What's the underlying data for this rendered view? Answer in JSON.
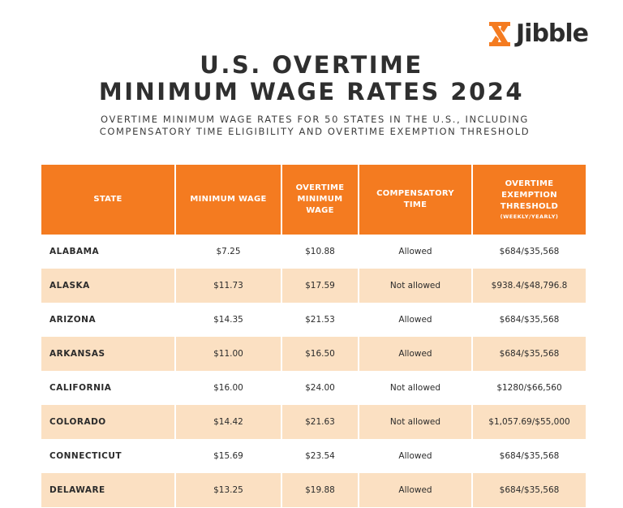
{
  "brand": {
    "logo_text": "Jibble",
    "accent_color": "#f47b20"
  },
  "title": {
    "line1": "U.S. OVERTIME",
    "line2": "MINIMUM WAGE RATES 2024"
  },
  "subtitle": {
    "line1": "OVERTIME MINIMUM WAGE RATES FOR 50 STATES IN THE U.S., INCLUDING",
    "line2": "COMPENSATORY TIME ELIGIBILITY AND OVERTIME EXEMPTION THRESHOLD"
  },
  "table": {
    "header_color": "#f47b20",
    "stripe_color": "#fbe0c2",
    "headers": {
      "state": "STATE",
      "min_wage": "MINIMUM WAGE",
      "ot_line1": "OVERTIME",
      "ot_line2": "MINIMUM",
      "ot_line3": "WAGE",
      "comp_line1": "COMPENSATORY",
      "comp_line2": "TIME",
      "thr_line1": "OVERTIME",
      "thr_line2": "EXEMPTION",
      "thr_line3": "THRESHOLD",
      "thr_sub": "(WEEKLY/YEARLY)"
    },
    "rows": [
      {
        "state": "ALABAMA",
        "min_wage": "$7.25",
        "ot_wage": "$10.88",
        "comp": "Allowed",
        "threshold": "$684/$35,568"
      },
      {
        "state": "ALASKA",
        "min_wage": "$11.73",
        "ot_wage": "$17.59",
        "comp": "Not allowed",
        "threshold": "$938.4/$48,796.8"
      },
      {
        "state": "ARIZONA",
        "min_wage": "$14.35",
        "ot_wage": "$21.53",
        "comp": "Allowed",
        "threshold": "$684/$35,568"
      },
      {
        "state": "ARKANSAS",
        "min_wage": "$11.00",
        "ot_wage": "$16.50",
        "comp": "Allowed",
        "threshold": "$684/$35,568"
      },
      {
        "state": "CALIFORNIA",
        "min_wage": "$16.00",
        "ot_wage": "$24.00",
        "comp": "Not allowed",
        "threshold": "$1280/$66,560"
      },
      {
        "state": "COLORADO",
        "min_wage": "$14.42",
        "ot_wage": "$21.63",
        "comp": "Not allowed",
        "threshold": "$1,057.69/$55,000"
      },
      {
        "state": "CONNECTICUT",
        "min_wage": "$15.69",
        "ot_wage": "$23.54",
        "comp": "Allowed",
        "threshold": "$684/$35,568"
      },
      {
        "state": "DELAWARE",
        "min_wage": "$13.25",
        "ot_wage": "$19.88",
        "comp": "Allowed",
        "threshold": "$684/$35,568"
      }
    ]
  }
}
